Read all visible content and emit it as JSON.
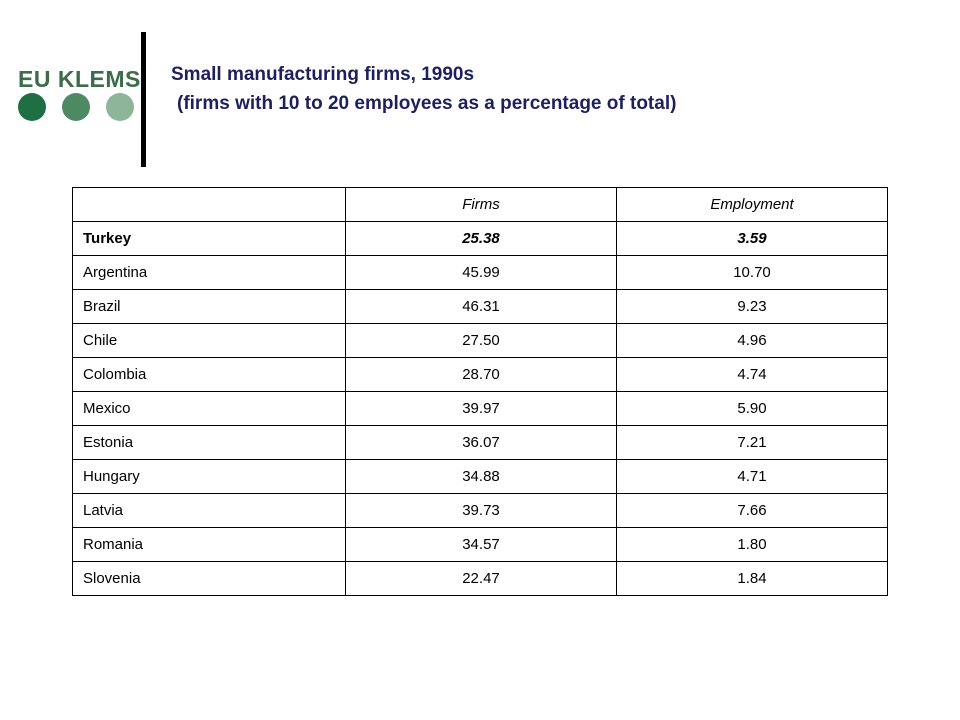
{
  "logo": {
    "text": "EU KLEMS"
  },
  "title": {
    "line1": "Small manufacturing  firms, 1990s",
    "line2": "(firms with 10 to 20 employees  as a percentage of total)"
  },
  "table": {
    "headers": [
      "",
      "Firms",
      "Employment"
    ],
    "rows": [
      {
        "country": "Turkey",
        "firms": "25.38",
        "employment": "3.59"
      },
      {
        "country": "Argentina",
        "firms": "45.99",
        "employment": "10.70"
      },
      {
        "country": "Brazil",
        "firms": "46.31",
        "employment": "9.23"
      },
      {
        "country": "Chile",
        "firms": "27.50",
        "employment": "4.96"
      },
      {
        "country": "Colombia",
        "firms": "28.70",
        "employment": "4.74"
      },
      {
        "country": "Mexico",
        "firms": "39.97",
        "employment": "5.90"
      },
      {
        "country": "Estonia",
        "firms": "36.07",
        "employment": "7.21"
      },
      {
        "country": "Hungary",
        "firms": "34.88",
        "employment": "4.71"
      },
      {
        "country": "Latvia",
        "firms": "39.73",
        "employment": "7.66"
      },
      {
        "country": "Romania",
        "firms": "34.57",
        "employment": "1.80"
      },
      {
        "country": "Slovenia",
        "firms": "22.47",
        "employment": "1.84"
      }
    ]
  }
}
